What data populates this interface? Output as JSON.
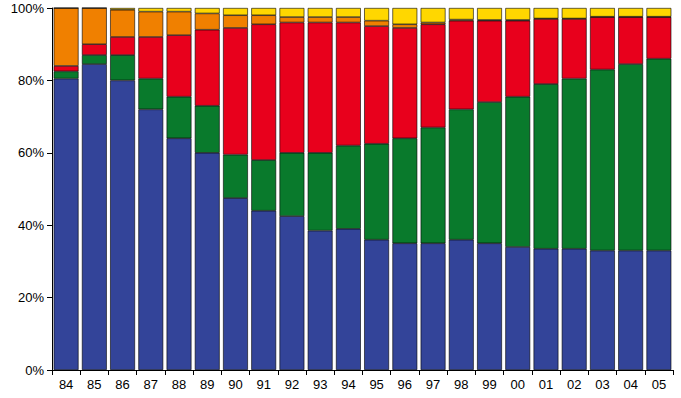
{
  "chart_data": {
    "type": "bar",
    "stacked": true,
    "grid": false,
    "categories": [
      "84",
      "85",
      "86",
      "87",
      "88",
      "89",
      "90",
      "91",
      "92",
      "93",
      "94",
      "95",
      "96",
      "97",
      "98",
      "99",
      "00",
      "01",
      "02",
      "03",
      "04",
      "05"
    ],
    "series": [
      {
        "color": "#334499",
        "values": [
          80.5,
          84.5,
          80,
          72,
          64,
          60,
          47.5,
          44,
          42.5,
          38.5,
          39,
          36,
          35,
          35,
          36,
          35,
          34,
          33.5,
          33.5,
          33,
          33,
          33
        ]
      },
      {
        "color": "#097a2c",
        "values": [
          2,
          2.5,
          7,
          8.5,
          11.5,
          13,
          12,
          14,
          17.5,
          21.5,
          23,
          26.5,
          29,
          32,
          36,
          39,
          41.5,
          45.5,
          47,
          50,
          51.5,
          53
        ]
      },
      {
        "color": "#e8001c",
        "values": [
          1.5,
          3,
          5,
          11.5,
          17,
          21,
          35,
          37.5,
          36,
          36,
          34,
          32.5,
          30.5,
          28.5,
          24.5,
          22.5,
          21,
          18,
          16.5,
          14.5,
          13,
          11.5
        ]
      },
      {
        "color": "#f08000",
        "values": [
          16,
          10,
          7.5,
          7,
          6.5,
          4.5,
          3.5,
          2.5,
          1.5,
          1.5,
          1.5,
          1.5,
          1,
          0.5,
          0.3,
          0.2,
          0.2,
          0.1,
          0.1,
          0.1,
          0.1,
          0.1
        ]
      },
      {
        "color": "#ffd700",
        "values": [
          0,
          0,
          0.5,
          1,
          1,
          1.5,
          2,
          2,
          2.5,
          2.5,
          2.5,
          3.5,
          4.5,
          4,
          3.2,
          3.3,
          3.3,
          2.9,
          2.9,
          2.4,
          2.4,
          2.4
        ]
      }
    ],
    "ylim": [
      0,
      100
    ],
    "yticks": [
      {
        "value": 0,
        "label": "0%"
      },
      {
        "value": 20,
        "label": "20%"
      },
      {
        "value": 40,
        "label": "40%"
      },
      {
        "value": 60,
        "label": "60%"
      },
      {
        "value": 80,
        "label": "80%"
      },
      {
        "value": 100,
        "label": "100%"
      }
    ]
  }
}
